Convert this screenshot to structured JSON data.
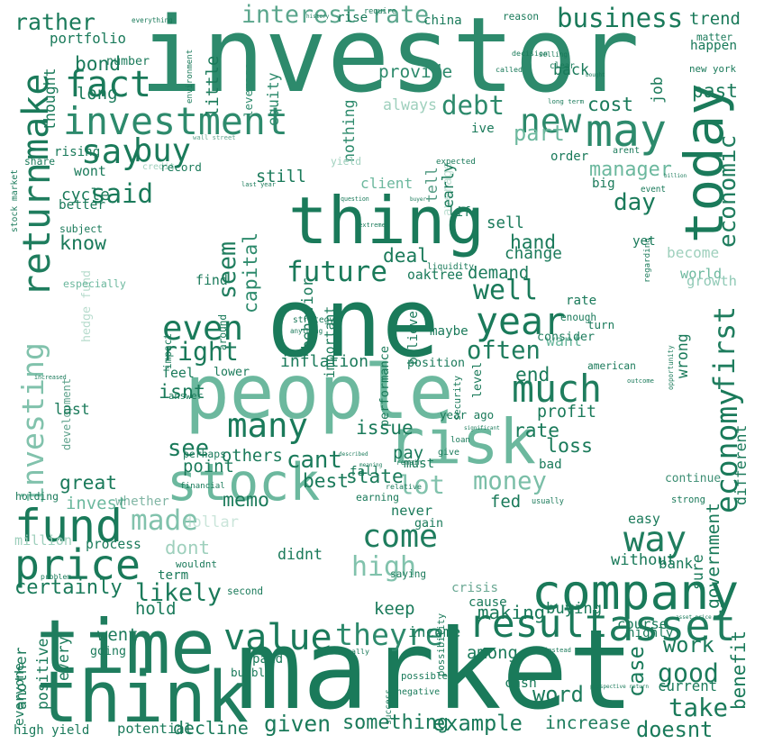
{
  "words": [
    {
      "text": "investor",
      "color": "#2d8a6c"
    },
    {
      "text": "market",
      "color": "#1a7a5a"
    },
    {
      "text": "one",
      "color": "#1a7a5a"
    },
    {
      "text": "people",
      "color": "#6cb89e"
    },
    {
      "text": "time",
      "color": "#1f7d5e"
    },
    {
      "text": "thing",
      "color": "#1a7a5a"
    },
    {
      "text": "think",
      "color": "#1f7d5e"
    },
    {
      "text": "risk",
      "color": "#6cb89e"
    },
    {
      "text": "company",
      "color": "#1a7a5a"
    },
    {
      "text": "investment",
      "color": "#2d8a6c"
    },
    {
      "text": "stock",
      "color": "#6cb89e"
    },
    {
      "text": "price",
      "color": "#1a7a5a"
    },
    {
      "text": "return",
      "color": "#1f7d5e"
    },
    {
      "text": "make",
      "color": "#1a7a5a"
    },
    {
      "text": "today",
      "color": "#1a7a5a"
    },
    {
      "text": "may",
      "color": "#2d8a6c"
    },
    {
      "text": "much",
      "color": "#1f7d5e"
    },
    {
      "text": "year",
      "color": "#1a7a5a"
    },
    {
      "text": "fund",
      "color": "#1a7a5a"
    },
    {
      "text": "investing",
      "color": "#6cb89e"
    },
    {
      "text": "value",
      "color": "#1a7a5a"
    },
    {
      "text": "theyre",
      "color": "#2d8a6c"
    },
    {
      "text": "result",
      "color": "#1a7a5a"
    },
    {
      "text": "asset",
      "color": "#1f7d5e"
    },
    {
      "text": "good",
      "color": "#1a7a5a"
    },
    {
      "text": "way",
      "color": "#1f7d5e"
    },
    {
      "text": "come",
      "color": "#1f7d5e"
    },
    {
      "text": "well",
      "color": "#1a7a5a"
    },
    {
      "text": "often",
      "color": "#1f7d5e"
    },
    {
      "text": "many",
      "color": "#1a7a5a"
    },
    {
      "text": "even",
      "color": "#1a7a5a"
    },
    {
      "text": "right",
      "color": "#1a7a5a"
    },
    {
      "text": "future",
      "color": "#1a7a5a"
    },
    {
      "text": "seem",
      "color": "#1f7d5e"
    },
    {
      "text": "capital",
      "color": "#2d8a6c"
    },
    {
      "text": "fact",
      "color": "#1a7a5a"
    },
    {
      "text": "say",
      "color": "#1a7a5a"
    },
    {
      "text": "buy",
      "color": "#1a7a5a"
    },
    {
      "text": "said",
      "color": "#1a7a5a"
    },
    {
      "text": "rather",
      "color": "#1a7a5a"
    },
    {
      "text": "interest rate",
      "color": "#3e9678"
    },
    {
      "text": "business",
      "color": "#1a7a5a"
    },
    {
      "text": "debt",
      "color": "#2d8a6c"
    },
    {
      "text": "new",
      "color": "#2d8a6c"
    },
    {
      "text": "economy",
      "color": "#1a7a5a"
    },
    {
      "text": "first",
      "color": "#1f7d5e"
    },
    {
      "text": "economic",
      "color": "#1f7d5e"
    },
    {
      "text": "high",
      "color": "#6cb89e"
    },
    {
      "text": "money",
      "color": "#6cb89e"
    },
    {
      "text": "take",
      "color": "#1a7a5a"
    },
    {
      "text": "great",
      "color": "#1a7a5a"
    },
    {
      "text": "likely",
      "color": "#1a7a5a"
    },
    {
      "text": "made",
      "color": "#6cb89e"
    },
    {
      "text": "cant",
      "color": "#1a7a5a"
    },
    {
      "text": "lot",
      "color": "#6cb89e"
    },
    {
      "text": "see",
      "color": "#1a7a5a"
    },
    {
      "text": "portfolio",
      "color": "#1a7a5a"
    },
    {
      "text": "know",
      "color": "#1a7a5a"
    },
    {
      "text": "given",
      "color": "#1a7a5a"
    },
    {
      "text": "something",
      "color": "#1a7a5a"
    },
    {
      "text": "example",
      "color": "#1a7a5a"
    },
    {
      "text": "increase",
      "color": "#1f7d5e"
    },
    {
      "text": "certainly",
      "color": "#1a7a5a"
    },
    {
      "text": "dont",
      "color": "#9fd0bd"
    },
    {
      "text": "profit",
      "color": "#1a7a5a"
    },
    {
      "text": "isnt",
      "color": "#1a7a5a"
    },
    {
      "text": "others",
      "color": "#1a7a5a"
    },
    {
      "text": "memo",
      "color": "#1a7a5a"
    },
    {
      "text": "government",
      "color": "#1a7a5a"
    },
    {
      "text": "without",
      "color": "#1a7a5a"
    },
    {
      "text": "manager",
      "color": "#6cb89e"
    },
    {
      "text": "day",
      "color": "#1a7a5a"
    },
    {
      "text": "become",
      "color": "#9fd0bd"
    },
    {
      "text": "world",
      "color": "#6cb89e"
    },
    {
      "text": "part",
      "color": "#6cb89e"
    },
    {
      "text": "always",
      "color": "#9fd0bd"
    },
    {
      "text": "want",
      "color": "#6cb89e"
    },
    {
      "text": "loss",
      "color": "#1a7a5a"
    },
    {
      "text": "case",
      "color": "#1a7a5a"
    },
    {
      "text": "work",
      "color": "#1a7a5a"
    },
    {
      "text": "course",
      "color": "#1a7a5a"
    },
    {
      "text": "buying",
      "color": "#1a7a5a"
    },
    {
      "text": "making",
      "color": "#1a7a5a"
    },
    {
      "text": "negative",
      "color": "#1a7a5a"
    },
    {
      "text": "word",
      "color": "#1a7a5a"
    },
    {
      "text": "current",
      "color": "#1a7a5a"
    },
    {
      "text": "benefit",
      "color": "#1a7a5a"
    },
    {
      "text": "potential",
      "color": "#1a7a5a"
    },
    {
      "text": "decline",
      "color": "#1a7a5a"
    },
    {
      "text": "high yield",
      "color": "#1a7a5a"
    },
    {
      "text": "doesnt",
      "color": "#1a7a5a"
    },
    {
      "text": "environment",
      "color": "#1a7a5a"
    },
    {
      "text": "little",
      "color": "#1a7a5a"
    },
    {
      "text": "leverage",
      "color": "#2d8a6c"
    },
    {
      "text": "equity",
      "color": "#2d8a6c"
    },
    {
      "text": "nothing",
      "color": "#2d8a6c"
    },
    {
      "text": "provide",
      "color": "#2d8a6c"
    },
    {
      "text": "decision",
      "color": "#1a7a5a"
    },
    {
      "text": "back",
      "color": "#1a7a5a"
    },
    {
      "text": "cost",
      "color": "#1a7a5a"
    },
    {
      "text": "long term",
      "color": "#1a7a5a"
    },
    {
      "text": "arent",
      "color": "#1a7a5a"
    },
    {
      "text": "job",
      "color": "#1a7a5a"
    },
    {
      "text": "new york",
      "color": "#1a7a5a"
    },
    {
      "text": "past",
      "color": "#1a7a5a"
    },
    {
      "text": "happen",
      "color": "#1a7a5a"
    },
    {
      "text": "matter",
      "color": "#1a7a5a"
    },
    {
      "text": "trend",
      "color": "#1a7a5a"
    },
    {
      "text": "reason",
      "color": "#1a7a5a"
    },
    {
      "text": "bond",
      "color": "#1a7a5a"
    },
    {
      "text": "number",
      "color": "#1a7a5a"
    },
    {
      "text": "long",
      "color": "#1a7a5a"
    },
    {
      "text": "thought",
      "color": "#1a7a5a"
    },
    {
      "text": "wall street",
      "color": "#1a7a5a"
    },
    {
      "text": "credit",
      "color": "#9fd0bd"
    },
    {
      "text": "wont",
      "color": "#1a7a5a"
    },
    {
      "text": "cycle",
      "color": "#1a7a5a"
    },
    {
      "text": "better",
      "color": "#1a7a5a"
    },
    {
      "text": "subject",
      "color": "#1a7a5a"
    },
    {
      "text": "still",
      "color": "#1a7a5a"
    },
    {
      "text": "client",
      "color": "#6cb89e"
    },
    {
      "text": "question",
      "color": "#1a7a5a"
    },
    {
      "text": "tell",
      "color": "#1a7a5a"
    },
    {
      "text": "average",
      "color": "#9fd0bd"
    },
    {
      "text": "yield",
      "color": "#9fd0bd"
    },
    {
      "text": "deal",
      "color": "#1a7a5a"
    },
    {
      "text": "oaktree",
      "color": "#1a7a5a"
    },
    {
      "text": "believe",
      "color": "#1a7a5a"
    },
    {
      "text": "consider",
      "color": "#1f7d5e"
    },
    {
      "text": "enough",
      "color": "#1a7a5a"
    },
    {
      "text": "turn",
      "color": "#1a7a5a"
    },
    {
      "text": "sell",
      "color": "#1a7a5a"
    },
    {
      "text": "hand",
      "color": "#1a7a5a"
    },
    {
      "text": "change",
      "color": "#1a7a5a"
    },
    {
      "text": "demand",
      "color": "#1a7a5a"
    },
    {
      "text": "behavior",
      "color": "#1a7a5a"
    },
    {
      "text": "important",
      "color": "#1a7a5a"
    },
    {
      "text": "inflation",
      "color": "#1a7a5a"
    },
    {
      "text": "performance",
      "color": "#1a7a5a"
    },
    {
      "text": "position",
      "color": "#1a7a5a"
    },
    {
      "text": "security",
      "color": "#1a7a5a"
    },
    {
      "text": "level",
      "color": "#1a7a5a"
    },
    {
      "text": "end",
      "color": "#1a7a5a"
    },
    {
      "text": "american",
      "color": "#1a7a5a"
    },
    {
      "text": "wrong",
      "color": "#1a7a5a"
    },
    {
      "text": "crisis",
      "color": "#1a7a5a"
    },
    {
      "text": "issue",
      "color": "#1a7a5a"
    },
    {
      "text": "described",
      "color": "#1a7a5a"
    },
    {
      "text": "pay",
      "color": "#1a7a5a"
    },
    {
      "text": "rate",
      "color": "#1a7a5a"
    },
    {
      "text": "state",
      "color": "#1a7a5a"
    },
    {
      "text": "best",
      "color": "#1a7a5a"
    },
    {
      "text": "point",
      "color": "#1a7a5a"
    },
    {
      "text": "perhaps",
      "color": "#1a7a5a"
    },
    {
      "text": "didnt",
      "color": "#1a7a5a"
    },
    {
      "text": "never",
      "color": "#1a7a5a"
    },
    {
      "text": "gain",
      "color": "#1a7a5a"
    },
    {
      "text": "fed",
      "color": "#1a7a5a"
    },
    {
      "text": "usually",
      "color": "#1a7a5a"
    },
    {
      "text": "easy",
      "color": "#1a7a5a"
    },
    {
      "text": "bank",
      "color": "#1a7a5a"
    },
    {
      "text": "sure",
      "color": "#1a7a5a"
    },
    {
      "text": "different",
      "color": "#1a7a5a"
    },
    {
      "text": "continue",
      "color": "#1a7a5a"
    },
    {
      "text": "growth",
      "color": "#6cb89e"
    },
    {
      "text": "invest",
      "color": "#6cb89e"
    },
    {
      "text": "whether",
      "color": "#1a7a5a"
    },
    {
      "text": "dollar",
      "color": "#9fd0bd"
    },
    {
      "text": "million",
      "color": "#9fd0bd"
    },
    {
      "text": "process",
      "color": "#1a7a5a"
    },
    {
      "text": "problem",
      "color": "#1a7a5a"
    },
    {
      "text": "hold",
      "color": "#1a7a5a"
    },
    {
      "text": "second",
      "color": "#1a7a5a"
    },
    {
      "text": "keep",
      "color": "#1a7a5a"
    },
    {
      "text": "income",
      "color": "#1a7a5a"
    },
    {
      "text": "success",
      "color": "#1a7a5a"
    },
    {
      "text": "possible",
      "color": "#1a7a5a"
    },
    {
      "text": "among",
      "color": "#1a7a5a"
    },
    {
      "text": "instead",
      "color": "#1a7a5a"
    },
    {
      "text": "cash",
      "color": "#1a7a5a"
    },
    {
      "text": "went",
      "color": "#1a7a5a"
    },
    {
      "text": "going",
      "color": "#1a7a5a"
    },
    {
      "text": "every",
      "color": "#1a7a5a"
    },
    {
      "text": "another",
      "color": "#1a7a5a"
    },
    {
      "text": "everyone",
      "color": "#1a7a5a"
    },
    {
      "text": "positive",
      "color": "#1a7a5a"
    },
    {
      "text": "development",
      "color": "#1a7a5a"
    },
    {
      "text": "hedge fund",
      "color": "#9fd0bd"
    },
    {
      "text": "especially",
      "color": "#6cb89e"
    },
    {
      "text": "increased",
      "color": "#1a7a5a"
    },
    {
      "text": "last",
      "color": "#1a7a5a"
    },
    {
      "text": "impact",
      "color": "#1a7a5a"
    },
    {
      "text": "feel",
      "color": "#1a7a5a"
    },
    {
      "text": "lower",
      "color": "#1a7a5a"
    },
    {
      "text": "around",
      "color": "#1a7a5a"
    },
    {
      "text": "find",
      "color": "#1a7a5a"
    },
    {
      "text": "answer",
      "color": "#1a7a5a"
    },
    {
      "text": "share",
      "color": "#1a7a5a"
    },
    {
      "text": "rising",
      "color": "#1a7a5a"
    },
    {
      "text": "stock market",
      "color": "#1a7a5a"
    },
    {
      "text": "everything",
      "color": "#1a7a5a"
    },
    {
      "text": "history",
      "color": "#1a7a5a"
    },
    {
      "text": "rise",
      "color": "#1a7a5a"
    },
    {
      "text": "require",
      "color": "#1a7a5a"
    },
    {
      "text": "china",
      "color": "#1a7a5a"
    },
    {
      "text": "selling",
      "color": "#1a7a5a"
    },
    {
      "text": "called",
      "color": "#1a7a5a"
    },
    {
      "text": "bought",
      "color": "#1a7a5a"
    },
    {
      "text": "ive",
      "color": "#1a7a5a"
    },
    {
      "text": "order",
      "color": "#1a7a5a"
    },
    {
      "text": "billion",
      "color": "#1a7a5a"
    },
    {
      "text": "big",
      "color": "#1a7a5a"
    },
    {
      "text": "event",
      "color": "#1a7a5a"
    },
    {
      "text": "life",
      "color": "#1a7a5a"
    },
    {
      "text": "extreme",
      "color": "#1a7a5a"
    },
    {
      "text": "buyer",
      "color": "#1a7a5a"
    },
    {
      "text": "yet",
      "color": "#1a7a5a"
    },
    {
      "text": "liquidity",
      "color": "#1a7a5a"
    },
    {
      "text": "strategy",
      "color": "#1a7a5a"
    },
    {
      "text": "anything",
      "color": "#1a7a5a"
    },
    {
      "text": "maybe",
      "color": "#1a7a5a"
    },
    {
      "text": "year ago",
      "color": "#1a7a5a"
    },
    {
      "text": "significant",
      "color": "#1a7a5a"
    },
    {
      "text": "loan",
      "color": "#1a7a5a"
    },
    {
      "text": "give",
      "color": "#1a7a5a"
    },
    {
      "text": "bad",
      "color": "#1a7a5a"
    },
    {
      "text": "financial",
      "color": "#1a7a5a"
    },
    {
      "text": "earning",
      "color": "#1a7a5a"
    },
    {
      "text": "relative",
      "color": "#1a7a5a"
    },
    {
      "text": "strong",
      "color": "#1a7a5a"
    },
    {
      "text": "saying",
      "color": "#1a7a5a"
    },
    {
      "text": "cause",
      "color": "#1a7a5a"
    },
    {
      "text": "asset price",
      "color": "#1a7a5a"
    },
    {
      "text": "highly",
      "color": "#1a7a5a"
    },
    {
      "text": "prospective return",
      "color": "#1a7a5a"
    },
    {
      "text": "paid",
      "color": "#1a7a5a"
    },
    {
      "text": "bubble",
      "color": "#1a7a5a"
    },
    {
      "text": "eventually",
      "color": "#1a7a5a"
    },
    {
      "text": "possibility",
      "color": "#1a7a5a"
    },
    {
      "text": "opportunity",
      "color": "#1a7a5a"
    },
    {
      "text": "regarding",
      "color": "#1a7a5a"
    },
    {
      "text": "outcome",
      "color": "#1a7a5a"
    },
    {
      "text": "early",
      "color": "#1a7a5a"
    },
    {
      "text": "expected",
      "color": "#1a7a5a"
    },
    {
      "text": "record",
      "color": "#1a7a5a"
    },
    {
      "text": "last year",
      "color": "#1a7a5a"
    },
    {
      "text": "clear",
      "color": "#1a7a5a"
    },
    {
      "text": "term",
      "color": "#1a7a5a"
    },
    {
      "text": "wouldnt",
      "color": "#1a7a5a"
    },
    {
      "text": "holding",
      "color": "#1a7a5a"
    },
    {
      "text": "remain",
      "color": "#1a7a5a"
    },
    {
      "text": "rate",
      "color": "#1a7a5a"
    },
    {
      "text": "fall",
      "color": "#1a7a5a"
    },
    {
      "text": "meaning",
      "color": "#1a7a5a"
    },
    {
      "text": "must",
      "color": "#1a7a5a"
    },
    {
      "text": "call",
      "color": "#1a7a5a"
    },
    {
      "text": "really",
      "color": "#1a7a5a"
    }
  ]
}
